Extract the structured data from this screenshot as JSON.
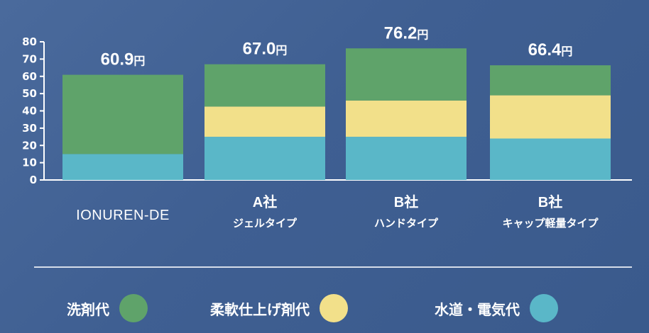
{
  "chart_data": {
    "type": "bar",
    "stacked": true,
    "categories": [
      {
        "main": "IONUREN-DE",
        "sub": ""
      },
      {
        "main": "A社",
        "sub": "ジェルタイプ"
      },
      {
        "main": "B社",
        "sub": "ハンドタイプ"
      },
      {
        "main": "B社",
        "sub": "キャップ軽量タイプ"
      }
    ],
    "series": [
      {
        "name": "水道・電気代",
        "color": "#5ab7c8",
        "values": [
          15,
          25,
          25,
          24
        ]
      },
      {
        "name": "柔軟仕上げ剤代",
        "color": "#f2e08a",
        "values": [
          0,
          17.5,
          21,
          25
        ]
      },
      {
        "name": "洗剤代",
        "color": "#5fa36a",
        "values": [
          45.9,
          24.5,
          30.2,
          17.4
        ]
      }
    ],
    "totals": [
      "60.9",
      "67.0",
      "76.2",
      "66.4"
    ],
    "total_unit": "円",
    "ylim": [
      0,
      80
    ],
    "yticks": [
      0,
      10,
      20,
      30,
      40,
      50,
      60,
      70,
      80
    ],
    "grid": false,
    "legend_position": "bottom"
  },
  "legend": {
    "items": [
      {
        "label": "洗剤代",
        "color": "#5fa36a"
      },
      {
        "label": "柔軟仕上げ剤代",
        "color": "#f2e08a"
      },
      {
        "label": "水道・電気代",
        "color": "#5ab7c8"
      }
    ]
  }
}
